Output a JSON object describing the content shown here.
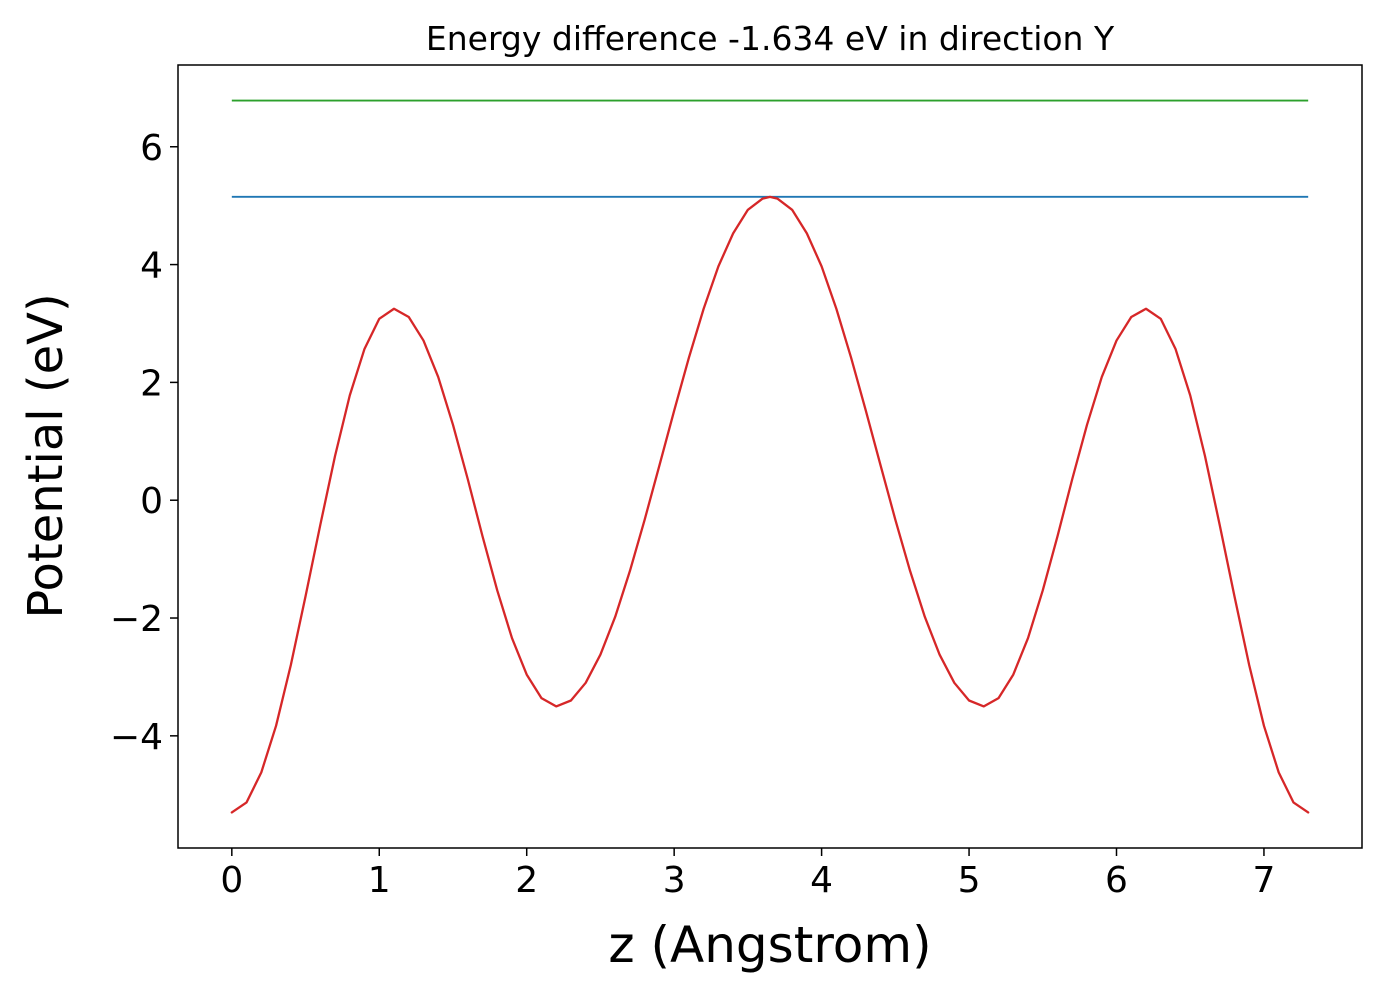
{
  "chart_data": {
    "type": "line",
    "title": "Energy difference -1.634 eV in direction Y",
    "xlabel": "z (Angstrom)",
    "ylabel": "Potential (eV)",
    "xlim": [
      -0.365,
      7.665
    ],
    "ylim": [
      -5.904,
      7.388
    ],
    "xticks": [
      0,
      1,
      2,
      3,
      4,
      5,
      6,
      7
    ],
    "yticks": [
      -4,
      -2,
      0,
      2,
      4,
      6
    ],
    "grid": false,
    "legend": false,
    "background": "#ffffff",
    "spine_color": "#000000",
    "series": [
      {
        "name": "green-energy-level",
        "kind": "hline",
        "color": "#2ca02c",
        "y": 6.784,
        "x_range": [
          0,
          7.3
        ]
      },
      {
        "name": "blue-energy-level",
        "kind": "hline",
        "color": "#1f77b4",
        "y": 5.15,
        "x_range": [
          0,
          7.3
        ]
      },
      {
        "name": "potential-curve",
        "kind": "line",
        "color": "#d62728",
        "x": [
          0.0,
          0.1,
          0.2,
          0.3,
          0.4,
          0.5,
          0.6,
          0.7,
          0.8,
          0.9,
          1.0,
          1.1,
          1.2,
          1.3,
          1.4,
          1.5,
          1.6,
          1.7,
          1.8,
          1.9,
          2.0,
          2.1,
          2.2,
          2.3,
          2.4,
          2.5,
          2.6,
          2.7,
          2.8,
          2.9,
          3.0,
          3.1,
          3.2,
          3.3,
          3.4,
          3.5,
          3.6,
          3.65,
          3.7,
          3.8,
          3.9,
          4.0,
          4.1,
          4.2,
          4.3,
          4.4,
          4.5,
          4.6,
          4.7,
          4.8,
          4.9,
          5.0,
          5.1,
          5.2,
          5.3,
          5.4,
          5.5,
          5.6,
          5.7,
          5.8,
          5.9,
          6.0,
          6.1,
          6.2,
          6.3,
          6.4,
          6.5,
          6.6,
          6.7,
          6.8,
          6.9,
          7.0,
          7.1,
          7.2,
          7.3
        ],
        "y": [
          -5.3,
          -5.13,
          -4.62,
          -3.83,
          -2.8,
          -1.63,
          -0.42,
          0.75,
          1.78,
          2.57,
          3.08,
          3.25,
          3.11,
          2.71,
          2.09,
          1.28,
          0.36,
          -0.61,
          -1.53,
          -2.34,
          -2.96,
          -3.36,
          -3.5,
          -3.4,
          -3.1,
          -2.62,
          -1.98,
          -1.2,
          -0.33,
          0.59,
          1.52,
          2.42,
          3.25,
          3.97,
          4.53,
          4.93,
          5.12,
          5.15,
          5.12,
          4.93,
          4.53,
          3.97,
          3.25,
          2.42,
          1.52,
          0.59,
          -0.33,
          -1.2,
          -1.98,
          -2.62,
          -3.1,
          -3.4,
          -3.5,
          -3.36,
          -2.96,
          -2.34,
          -1.53,
          -0.61,
          0.36,
          1.28,
          2.09,
          2.71,
          3.11,
          3.25,
          3.08,
          2.57,
          1.78,
          0.75,
          -0.42,
          -1.63,
          -2.8,
          -3.83,
          -4.62,
          -5.13,
          -5.3
        ]
      }
    ]
  }
}
